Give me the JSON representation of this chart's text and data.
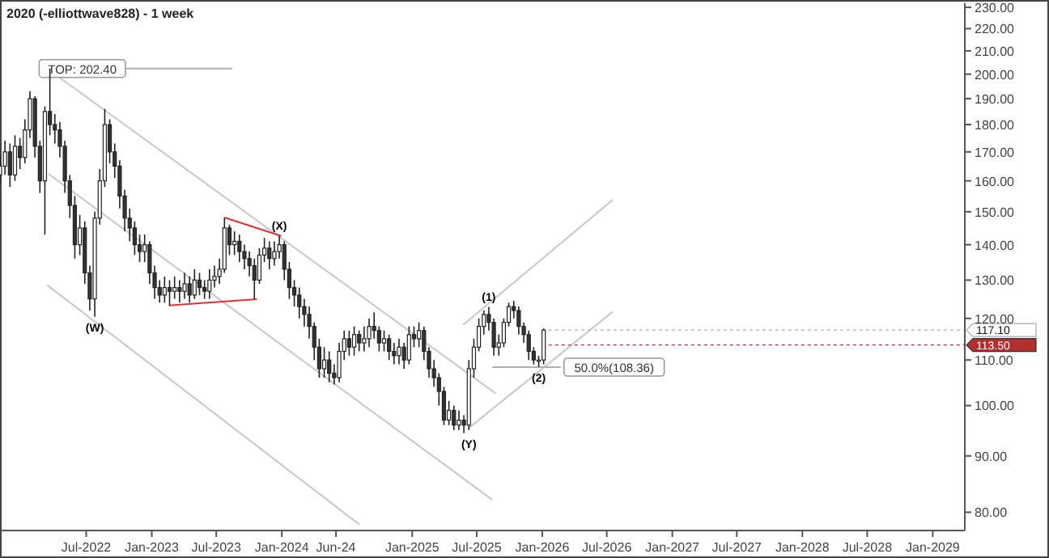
{
  "chart_data": {
    "type": "candlestick",
    "title": "2020 (-elliottwave828) - 1 week",
    "log": true,
    "grid": false,
    "xlim": [
      "2021-11-01",
      "2029-04-01"
    ],
    "xticks": [
      {
        "value": "2022-07-01",
        "label": "Jul-2022"
      },
      {
        "value": "2023-01-01",
        "label": "Jan-2023"
      },
      {
        "value": "2023-07-01",
        "label": "Jul-2023"
      },
      {
        "value": "2024-01-01",
        "label": "Jan-2024"
      },
      {
        "value": "2024-06-01",
        "label": "Jun-24"
      },
      {
        "value": "2025-01-01",
        "label": "Jan-2025"
      },
      {
        "value": "2025-07-01",
        "label": "Jul-2025"
      },
      {
        "value": "2026-01-01",
        "label": "Jan-2026"
      },
      {
        "value": "2026-07-01",
        "label": "Jul-2026"
      },
      {
        "value": "2027-01-01",
        "label": "Jan-2027"
      },
      {
        "value": "2027-07-01",
        "label": "Jul-2027"
      },
      {
        "value": "2028-01-01",
        "label": "Jan-2028"
      },
      {
        "value": "2028-07-01",
        "label": "Jul-2028"
      },
      {
        "value": "2029-01-01",
        "label": "Jan-2029"
      }
    ],
    "ylim": [
      77,
      232
    ],
    "yticks": [
      {
        "value": 80,
        "label": "80.00"
      },
      {
        "value": 90,
        "label": "90.00"
      },
      {
        "value": 100,
        "label": "100.00"
      },
      {
        "value": 110,
        "label": "110.00"
      },
      {
        "value": 120,
        "label": "120.00"
      },
      {
        "value": 130,
        "label": "130.00"
      },
      {
        "value": 140,
        "label": "140.00"
      },
      {
        "value": 150,
        "label": "150.00"
      },
      {
        "value": 160,
        "label": "160.00"
      },
      {
        "value": 170,
        "label": "170.00"
      },
      {
        "value": 180,
        "label": "180.00"
      },
      {
        "value": 190,
        "label": "190.00"
      },
      {
        "value": 200,
        "label": "200.00"
      },
      {
        "value": 210,
        "label": "210.00"
      },
      {
        "value": 220,
        "label": "220.00"
      },
      {
        "value": 230,
        "label": "230.00"
      }
    ],
    "x": [
      "2021-11-01",
      "2021-11-15",
      "2021-11-29",
      "2021-12-13",
      "2021-12-27",
      "2022-01-10",
      "2022-01-24",
      "2022-02-07",
      "2022-02-21",
      "2022-03-07",
      "2022-03-21",
      "2022-04-04",
      "2022-04-18",
      "2022-05-02",
      "2022-05-16",
      "2022-05-30",
      "2022-06-13",
      "2022-06-27",
      "2022-07-11",
      "2022-07-25",
      "2022-08-08",
      "2022-08-22",
      "2022-09-05",
      "2022-09-19",
      "2022-10-03",
      "2022-10-17",
      "2022-10-31",
      "2022-11-14",
      "2022-11-28",
      "2022-12-12",
      "2022-12-26",
      "2023-01-09",
      "2023-01-23",
      "2023-02-06",
      "2023-02-20",
      "2023-03-06",
      "2023-03-20",
      "2023-04-03",
      "2023-04-17",
      "2023-05-01",
      "2023-05-15",
      "2023-05-29",
      "2023-06-12",
      "2023-06-26",
      "2023-07-10",
      "2023-07-24",
      "2023-08-07",
      "2023-08-21",
      "2023-09-04",
      "2023-09-18",
      "2023-10-02",
      "2023-10-16",
      "2023-10-30",
      "2023-11-13",
      "2023-11-27",
      "2023-12-11",
      "2023-12-25",
      "2024-01-08",
      "2024-01-22",
      "2024-02-05",
      "2024-02-19",
      "2024-03-04",
      "2024-03-18",
      "2024-04-01",
      "2024-04-15",
      "2024-04-29",
      "2024-05-13",
      "2024-05-27",
      "2024-06-10",
      "2024-06-24",
      "2024-07-08",
      "2024-07-22",
      "2024-08-05",
      "2024-08-19",
      "2024-09-02",
      "2024-09-16",
      "2024-09-30",
      "2024-10-14",
      "2024-10-28",
      "2024-11-11",
      "2024-11-25",
      "2024-12-09",
      "2024-12-23",
      "2025-01-06",
      "2025-01-20",
      "2025-02-03",
      "2025-02-17",
      "2025-03-03",
      "2025-03-17",
      "2025-03-31",
      "2025-04-14",
      "2025-04-28",
      "2025-05-12",
      "2025-05-26",
      "2025-06-09",
      "2025-06-23",
      "2025-07-07",
      "2025-07-21",
      "2025-08-04",
      "2025-08-18",
      "2025-09-01",
      "2025-09-15",
      "2025-09-29",
      "2025-10-13",
      "2025-10-27",
      "2025-11-10",
      "2025-11-24",
      "2025-12-08",
      "2025-12-22",
      "2026-01-05"
    ],
    "ohlc": [
      [
        162,
        169,
        159,
        165
      ],
      [
        165,
        174,
        162,
        170
      ],
      [
        170,
        173,
        158,
        162
      ],
      [
        162,
        176,
        160,
        172
      ],
      [
        172,
        175,
        164,
        168
      ],
      [
        168,
        182,
        166,
        178
      ],
      [
        178,
        193,
        175,
        190
      ],
      [
        190,
        191,
        168,
        172
      ],
      [
        172,
        174,
        156,
        160
      ],
      [
        160,
        187,
        143,
        185
      ],
      [
        185,
        202.4,
        176,
        180
      ],
      [
        180,
        184,
        173,
        178
      ],
      [
        178,
        181,
        168,
        172
      ],
      [
        172,
        174,
        156,
        160
      ],
      [
        160,
        162,
        148,
        152
      ],
      [
        152,
        155,
        136,
        140
      ],
      [
        140,
        149,
        137,
        145
      ],
      [
        145,
        147,
        129,
        132
      ],
      [
        132,
        134,
        122,
        125
      ],
      [
        125,
        150,
        120.4,
        148
      ],
      [
        148,
        164,
        146,
        160
      ],
      [
        160,
        186,
        158,
        180
      ],
      [
        180,
        182,
        166,
        170
      ],
      [
        170,
        173,
        161,
        165
      ],
      [
        165,
        167,
        151,
        155
      ],
      [
        155,
        157,
        144,
        148
      ],
      [
        148,
        151,
        141,
        145
      ],
      [
        145,
        147,
        137,
        140
      ],
      [
        140,
        143,
        135,
        138
      ],
      [
        138,
        143,
        135,
        140
      ],
      [
        140,
        141,
        129,
        132
      ],
      [
        132,
        134,
        125,
        128
      ],
      [
        128,
        130,
        124,
        126
      ],
      [
        126,
        131,
        124,
        128
      ],
      [
        128,
        130,
        123.3,
        127
      ],
      [
        127,
        131,
        125,
        128
      ],
      [
        128,
        130,
        124,
        127
      ],
      [
        127,
        132,
        125,
        129
      ],
      [
        129,
        131,
        124,
        126
      ],
      [
        126,
        133,
        125,
        130
      ],
      [
        130,
        132,
        126,
        128
      ],
      [
        128,
        130,
        125,
        127
      ],
      [
        127,
        133,
        125,
        130
      ],
      [
        130,
        134,
        128,
        131
      ],
      [
        131,
        136,
        129,
        133
      ],
      [
        133,
        148.2,
        132,
        145
      ],
      [
        145,
        146,
        137,
        140
      ],
      [
        140,
        144,
        137,
        141
      ],
      [
        141,
        143,
        135,
        138
      ],
      [
        138,
        140,
        133,
        136
      ],
      [
        136,
        138,
        131,
        134
      ],
      [
        134,
        136,
        124.9,
        130
      ],
      [
        130,
        139,
        129,
        137
      ],
      [
        137,
        142,
        135,
        139
      ],
      [
        139,
        141,
        133,
        136
      ],
      [
        136,
        141,
        134,
        138
      ],
      [
        138,
        142.6,
        136,
        140
      ],
      [
        140,
        141,
        130,
        133
      ],
      [
        133,
        135,
        125,
        128
      ],
      [
        128,
        130,
        123,
        126
      ],
      [
        126,
        128,
        120,
        123
      ],
      [
        123,
        125,
        118,
        121
      ],
      [
        121,
        123,
        115,
        118
      ],
      [
        118,
        119,
        110,
        113
      ],
      [
        113,
        115,
        106,
        108
      ],
      [
        108,
        113,
        106,
        110
      ],
      [
        110,
        112,
        105,
        107
      ],
      [
        107,
        109,
        104.5,
        106
      ],
      [
        106,
        114,
        105,
        112
      ],
      [
        112,
        117,
        110,
        115
      ],
      [
        115,
        117,
        111,
        113
      ],
      [
        113,
        118,
        111,
        116
      ],
      [
        116,
        117,
        112,
        114
      ],
      [
        114,
        118,
        112,
        115
      ],
      [
        115,
        120,
        113,
        118
      ],
      [
        118,
        121.5,
        115,
        117
      ],
      [
        117,
        118,
        112,
        114
      ],
      [
        114,
        117,
        112,
        115
      ],
      [
        115,
        116,
        110,
        112
      ],
      [
        112,
        114,
        109,
        111
      ],
      [
        111,
        115,
        109,
        113
      ],
      [
        113,
        114,
        108,
        110
      ],
      [
        110,
        118,
        109,
        116
      ],
      [
        116,
        118,
        113,
        115
      ],
      [
        115,
        119,
        113,
        117
      ],
      [
        117,
        118,
        110,
        112
      ],
      [
        112,
        113,
        106,
        108
      ],
      [
        108,
        110,
        104,
        106
      ],
      [
        106,
        107,
        100,
        103
      ],
      [
        103,
        104,
        96,
        97
      ],
      [
        97,
        101,
        96,
        99
      ],
      [
        99,
        100,
        95,
        96
      ],
      [
        96,
        99,
        95,
        97
      ],
      [
        97,
        98,
        94.4,
        96
      ],
      [
        96,
        110,
        95,
        108
      ],
      [
        108,
        115,
        106,
        113
      ],
      [
        113,
        120,
        112,
        118
      ],
      [
        118,
        122,
        116,
        121
      ],
      [
        121,
        122.9,
        117,
        119
      ],
      [
        119,
        120,
        111,
        113
      ],
      [
        113,
        116,
        111,
        114
      ],
      [
        114,
        120,
        113,
        119
      ],
      [
        119,
        124,
        118,
        123
      ],
      [
        123,
        124.5,
        120,
        122
      ],
      [
        122,
        123,
        116,
        118
      ],
      [
        118,
        119,
        114,
        116
      ],
      [
        116,
        117,
        110,
        112
      ],
      [
        112,
        113,
        109,
        110
      ],
      [
        110,
        111,
        108.4,
        110
      ],
      [
        110,
        117.5,
        109,
        117.1
      ]
    ],
    "series": [
      {
        "type": "line",
        "color": "#c8c8c8",
        "x": [
          "2022-03-13",
          "2025-08-23"
        ],
        "values": [
          202.4,
          102.6
        ]
      },
      {
        "type": "line",
        "color": "#c8c8c8",
        "x": [
          "2022-03-18",
          "2025-08-14"
        ],
        "values": [
          162.3,
          82.1
        ]
      },
      {
        "type": "line",
        "color": "#c8c8c8",
        "x": [
          "2022-03-13",
          "2024-08-05"
        ],
        "values": [
          128.7,
          78
        ]
      },
      {
        "type": "line",
        "color": "#c8c8c8",
        "x": [
          "2025-06-07",
          "2026-07-18"
        ],
        "values": [
          95.3,
          121.7
        ]
      },
      {
        "type": "line",
        "color": "#c8c8c8",
        "x": [
          "2025-05-24",
          "2026-07-18"
        ],
        "values": [
          118.4,
          153.8
        ]
      },
      {
        "type": "line",
        "color": "#b0b0b0",
        "x": [
          "2022-03-13",
          "2023-08-15"
        ],
        "values": [
          202.4,
          202.4
        ]
      },
      {
        "type": "line",
        "color": "#b0b0b0",
        "x": [
          "2025-08-14",
          "2026-02-22"
        ],
        "values": [
          108.36,
          108.36
        ]
      },
      {
        "type": "line",
        "color": "#e03030",
        "x": [
          "2023-02-18",
          "2023-10-23"
        ],
        "values": [
          123.3,
          124.9
        ]
      },
      {
        "type": "line",
        "color": "#e03030",
        "x": [
          "2023-07-24",
          "2023-12-30"
        ],
        "values": [
          148.2,
          142.6
        ]
      }
    ],
    "ref_lines": [
      {
        "axis": "y",
        "value": 117.1,
        "label": "117.10",
        "color": "#aaaaaa"
      },
      {
        "axis": "y",
        "value": 113.5,
        "label": "113.50",
        "color": "#b03030"
      }
    ],
    "annotations": [
      {
        "text": "TOP: 202.40",
        "x": "2022-06-20",
        "y": 202.4
      },
      {
        "text": "(W)",
        "x": "2022-07-25",
        "y": 120.4
      },
      {
        "text": "(X)",
        "x": "2023-12-25",
        "y": 142.6
      },
      {
        "text": "(Y)",
        "x": "2025-06-09",
        "y": 94.4
      },
      {
        "text": "(1)",
        "x": "2025-08-04",
        "y": 122.9
      },
      {
        "text": "(2)",
        "x": "2025-12-22",
        "y": 108.4
      },
      {
        "text": "50.0%(108.36)",
        "x": "2026-02-22",
        "y": 108.36
      }
    ]
  }
}
